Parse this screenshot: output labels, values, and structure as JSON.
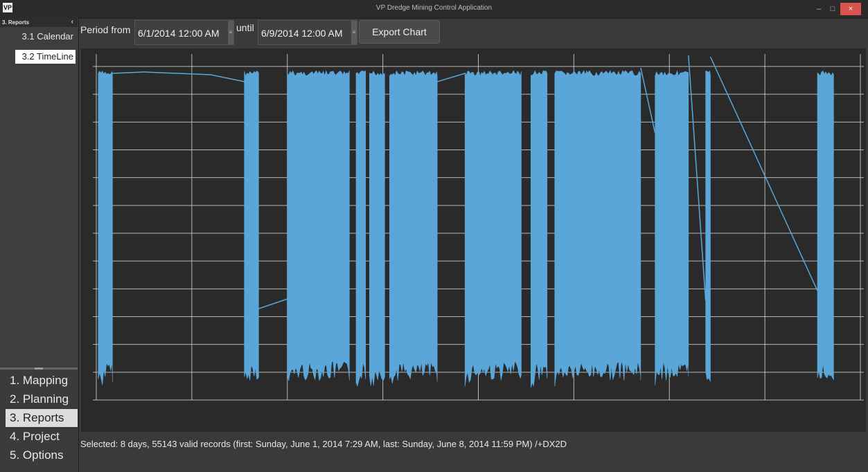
{
  "window": {
    "title": "VP Dredge Mining Control Application",
    "icon_text": "VP",
    "controls": [
      "–",
      "□",
      "×"
    ]
  },
  "sidebar": {
    "section_title": "3. Reports",
    "sub_items": [
      "3.1 Calendar",
      "3.2 TimeLine"
    ],
    "selected_sub_item": "3.2 TimeLine",
    "nav_items": [
      "1. Mapping",
      "2. Planning",
      "3. Reports",
      "4. Project",
      "5. Options"
    ],
    "active_nav": "3. Reports"
  },
  "toolbar": {
    "period_from_label": "Period from",
    "from_value": "6/1/2014 12:00 AM",
    "until_label": "until",
    "until_value": "6/9/2014 12:00 AM",
    "export_label": "Export Chart"
  },
  "chart_data": {
    "type": "line",
    "title": "",
    "xlabel": "",
    "ylabel": "",
    "grid": true,
    "series_color": "#5aa6d9",
    "background": "#2a2a2a",
    "grid_color": "#cfcfcf",
    "x_range_days": [
      0,
      8
    ],
    "y_range": [
      0,
      1
    ],
    "active_segments_days": [
      [
        0.02,
        0.17
      ],
      [
        1.55,
        1.7
      ],
      [
        2.0,
        2.65
      ],
      [
        2.72,
        2.82
      ],
      [
        2.86,
        3.02
      ],
      [
        3.07,
        3.57
      ],
      [
        3.86,
        4.45
      ],
      [
        4.55,
        4.72
      ],
      [
        4.8,
        5.7
      ],
      [
        5.85,
        6.2
      ],
      [
        6.38,
        6.43
      ],
      [
        7.55,
        7.72
      ]
    ]
  },
  "status": {
    "text": "Selected: 8 days, 55143 valid records (first: Sunday, June 1, 2014 7:29 AM, last: Sunday, June 8, 2014 11:59 PM) /+DX2D"
  }
}
